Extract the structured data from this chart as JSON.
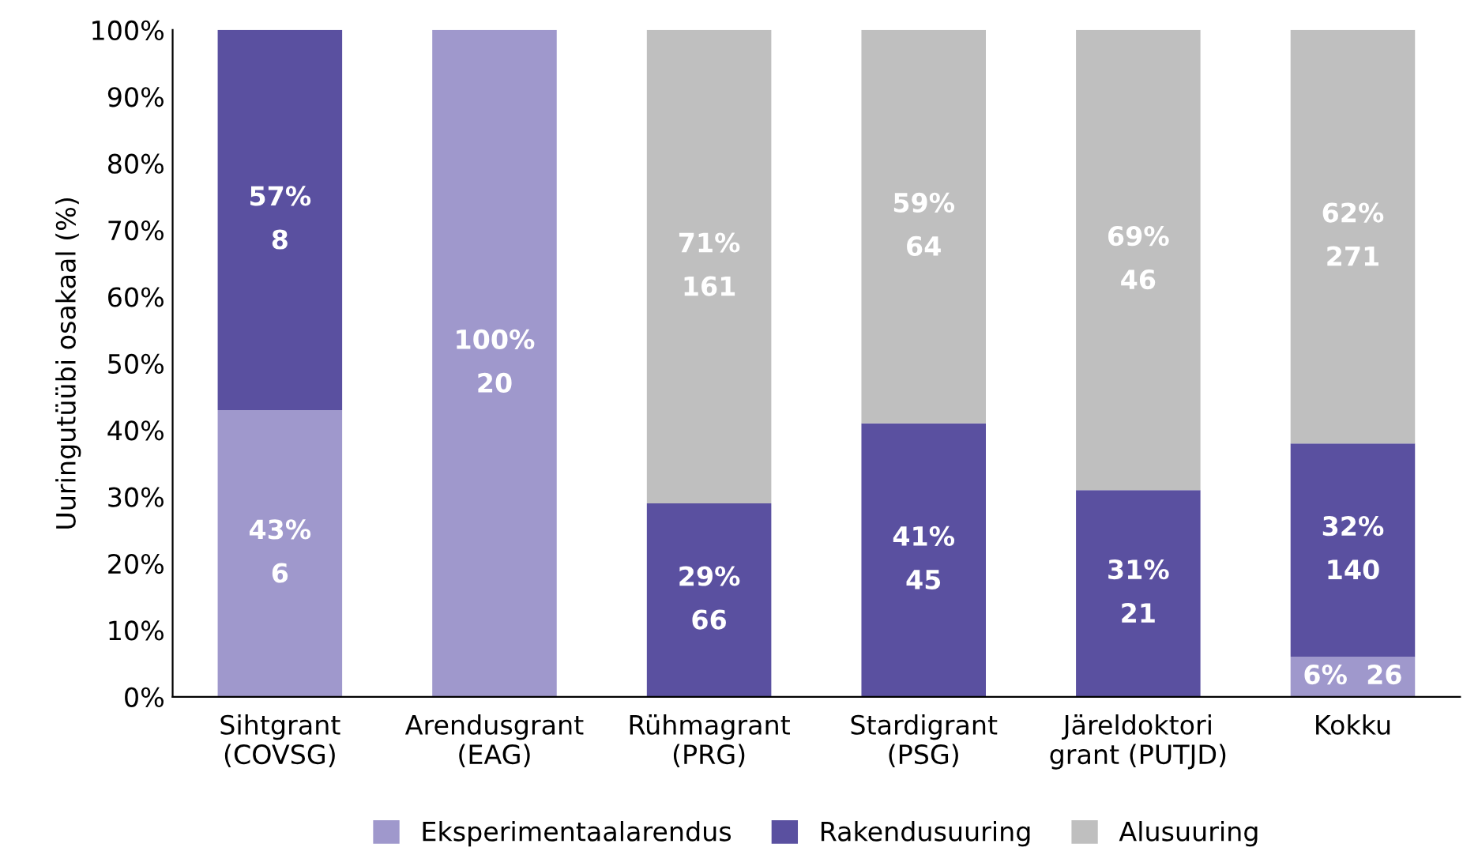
{
  "chart_data": {
    "type": "bar",
    "stacked": true,
    "ylabel": "Uuringutüübi osakaal (%)",
    "categories": [
      "Sihtgrant\n(COVSG)",
      "Arendusgrant\n(EAG)",
      "Rühmagrant\n(PRG)",
      "Stardigrant\n(PSG)",
      "Järeldoktori\ngrant (PUTJD)",
      "Kokku"
    ],
    "series": [
      {
        "name": "Eksperimentaalarendus",
        "color": "#9f98cc",
        "values": [
          43,
          100,
          0,
          0,
          0,
          6
        ],
        "value_labels": [
          "43%\n6",
          "100%\n20",
          null,
          null,
          null,
          "6%  26"
        ]
      },
      {
        "name": "Rakendusuuring",
        "color": "#5a50a0",
        "values": [
          57,
          0,
          29,
          41,
          31,
          32
        ],
        "value_labels": [
          "57%\n8",
          null,
          "29%\n66",
          "41%\n45",
          "31%\n21",
          "32%\n140"
        ]
      },
      {
        "name": "Alusuuring",
        "color": "#bfbfbf",
        "values": [
          0,
          0,
          71,
          59,
          69,
          62
        ],
        "value_labels": [
          null,
          null,
          "71%\n161",
          "59%\n64",
          "69%\n46",
          "62%\n271"
        ]
      }
    ],
    "ylim": [
      0,
      100
    ],
    "yticks": [
      {
        "value": 0,
        "label": "0%"
      },
      {
        "value": 10,
        "label": "10%"
      },
      {
        "value": 20,
        "label": "20%"
      },
      {
        "value": 30,
        "label": "30%"
      },
      {
        "value": 40,
        "label": "40%"
      },
      {
        "value": 50,
        "label": "50%"
      },
      {
        "value": 60,
        "label": "60%"
      },
      {
        "value": 70,
        "label": "70%"
      },
      {
        "value": 80,
        "label": "80%"
      },
      {
        "value": 90,
        "label": "90%"
      },
      {
        "value": 100,
        "label": "100%"
      }
    ],
    "grid": false,
    "legend": "bottom"
  }
}
